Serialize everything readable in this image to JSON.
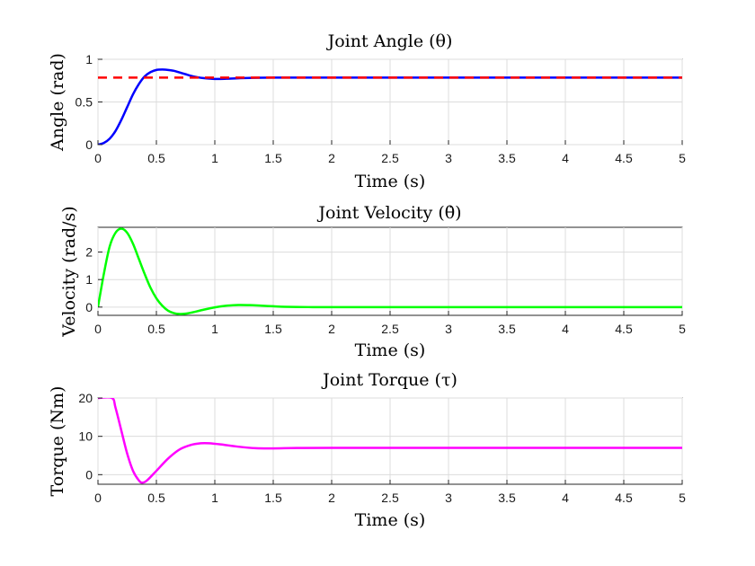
{
  "chart_data": [
    {
      "type": "line",
      "title": "Joint Angle (θ)",
      "xlabel": "Time (s)",
      "ylabel": "Angle (rad)",
      "xlim": [
        0,
        5
      ],
      "ylim": [
        0,
        1
      ],
      "xticks": [
        "0",
        "0.5",
        "1",
        "1.5",
        "2",
        "2.5",
        "3",
        "3.5",
        "4",
        "4.5",
        "5"
      ],
      "yticks": [
        "0",
        "0.5",
        "1"
      ],
      "ytick_values": [
        0,
        0.5,
        1
      ],
      "grid": true,
      "series": [
        {
          "color": "#0000ff",
          "style": "solid",
          "x": [
            0,
            0.05,
            0.1,
            0.15,
            0.2,
            0.25,
            0.3,
            0.35,
            0.4,
            0.45,
            0.5,
            0.55,
            0.6,
            0.65,
            0.7,
            0.75,
            0.8,
            0.85,
            0.9,
            1.0,
            1.1,
            1.2,
            1.3,
            1.5,
            2.0,
            3.0,
            4.0,
            5.0
          ],
          "values": [
            0,
            0.02,
            0.07,
            0.16,
            0.29,
            0.44,
            0.59,
            0.71,
            0.8,
            0.85,
            0.875,
            0.88,
            0.875,
            0.865,
            0.845,
            0.825,
            0.805,
            0.79,
            0.78,
            0.77,
            0.772,
            0.778,
            0.782,
            0.785,
            0.785,
            0.785,
            0.785,
            0.785
          ]
        },
        {
          "color": "#ff0000",
          "style": "dashed",
          "x": [
            0,
            5
          ],
          "values": [
            0.785,
            0.785
          ]
        }
      ]
    },
    {
      "type": "line",
      "title": "Joint Velocity (θ̇)",
      "xlabel": "Time (s)",
      "ylabel": "Velocity (rad/s)",
      "xlim": [
        0,
        5
      ],
      "ylim": [
        -0.3,
        2.9
      ],
      "xticks": [
        "0",
        "0.5",
        "1",
        "1.5",
        "2",
        "2.5",
        "3",
        "3.5",
        "4",
        "4.5",
        "5"
      ],
      "yticks": [
        "0",
        "1",
        "2"
      ],
      "ytick_values": [
        0,
        1,
        2
      ],
      "grid": true,
      "series": [
        {
          "color": "#00ff00",
          "style": "solid",
          "x": [
            0,
            0.05,
            0.1,
            0.15,
            0.2,
            0.25,
            0.3,
            0.35,
            0.4,
            0.45,
            0.5,
            0.55,
            0.6,
            0.65,
            0.7,
            0.75,
            0.8,
            0.9,
            1.0,
            1.1,
            1.2,
            1.3,
            1.4,
            1.5,
            1.6,
            1.8,
            2.0,
            3.0,
            4.0,
            5.0
          ],
          "values": [
            0,
            1.2,
            2.2,
            2.7,
            2.85,
            2.7,
            2.3,
            1.75,
            1.2,
            0.7,
            0.32,
            0.05,
            -0.13,
            -0.22,
            -0.25,
            -0.24,
            -0.2,
            -0.1,
            -0.01,
            0.05,
            0.075,
            0.07,
            0.05,
            0.03,
            0.01,
            0.0,
            0.0,
            0.0,
            0.0,
            0.0
          ]
        }
      ]
    },
    {
      "type": "line",
      "title": "Joint Torque (τ)",
      "xlabel": "Time (s)",
      "ylabel": "Torque (Nm)",
      "xlim": [
        0,
        5
      ],
      "ylim": [
        -2.5,
        20
      ],
      "xticks": [
        "0",
        "0.5",
        "1",
        "1.5",
        "2",
        "2.5",
        "3",
        "3.5",
        "4",
        "4.5",
        "5"
      ],
      "yticks": [
        "0",
        "10",
        "20"
      ],
      "ytick_values": [
        0,
        10,
        20
      ],
      "grid": true,
      "series": [
        {
          "color": "#ff00ff",
          "style": "solid",
          "x": [
            0,
            0.12,
            0.15,
            0.2,
            0.25,
            0.3,
            0.35,
            0.38,
            0.42,
            0.5,
            0.6,
            0.7,
            0.8,
            0.88,
            0.95,
            1.05,
            1.2,
            1.35,
            1.5,
            1.7,
            2.0,
            3.0,
            4.0,
            5.0
          ],
          "values": [
            20,
            20,
            17.5,
            11.5,
            5.5,
            1.0,
            -1.5,
            -2.1,
            -1.5,
            1.0,
            4.2,
            6.6,
            7.8,
            8.2,
            8.2,
            7.9,
            7.3,
            6.9,
            6.85,
            6.95,
            7.0,
            7.0,
            7.0,
            7.0
          ]
        }
      ]
    }
  ]
}
